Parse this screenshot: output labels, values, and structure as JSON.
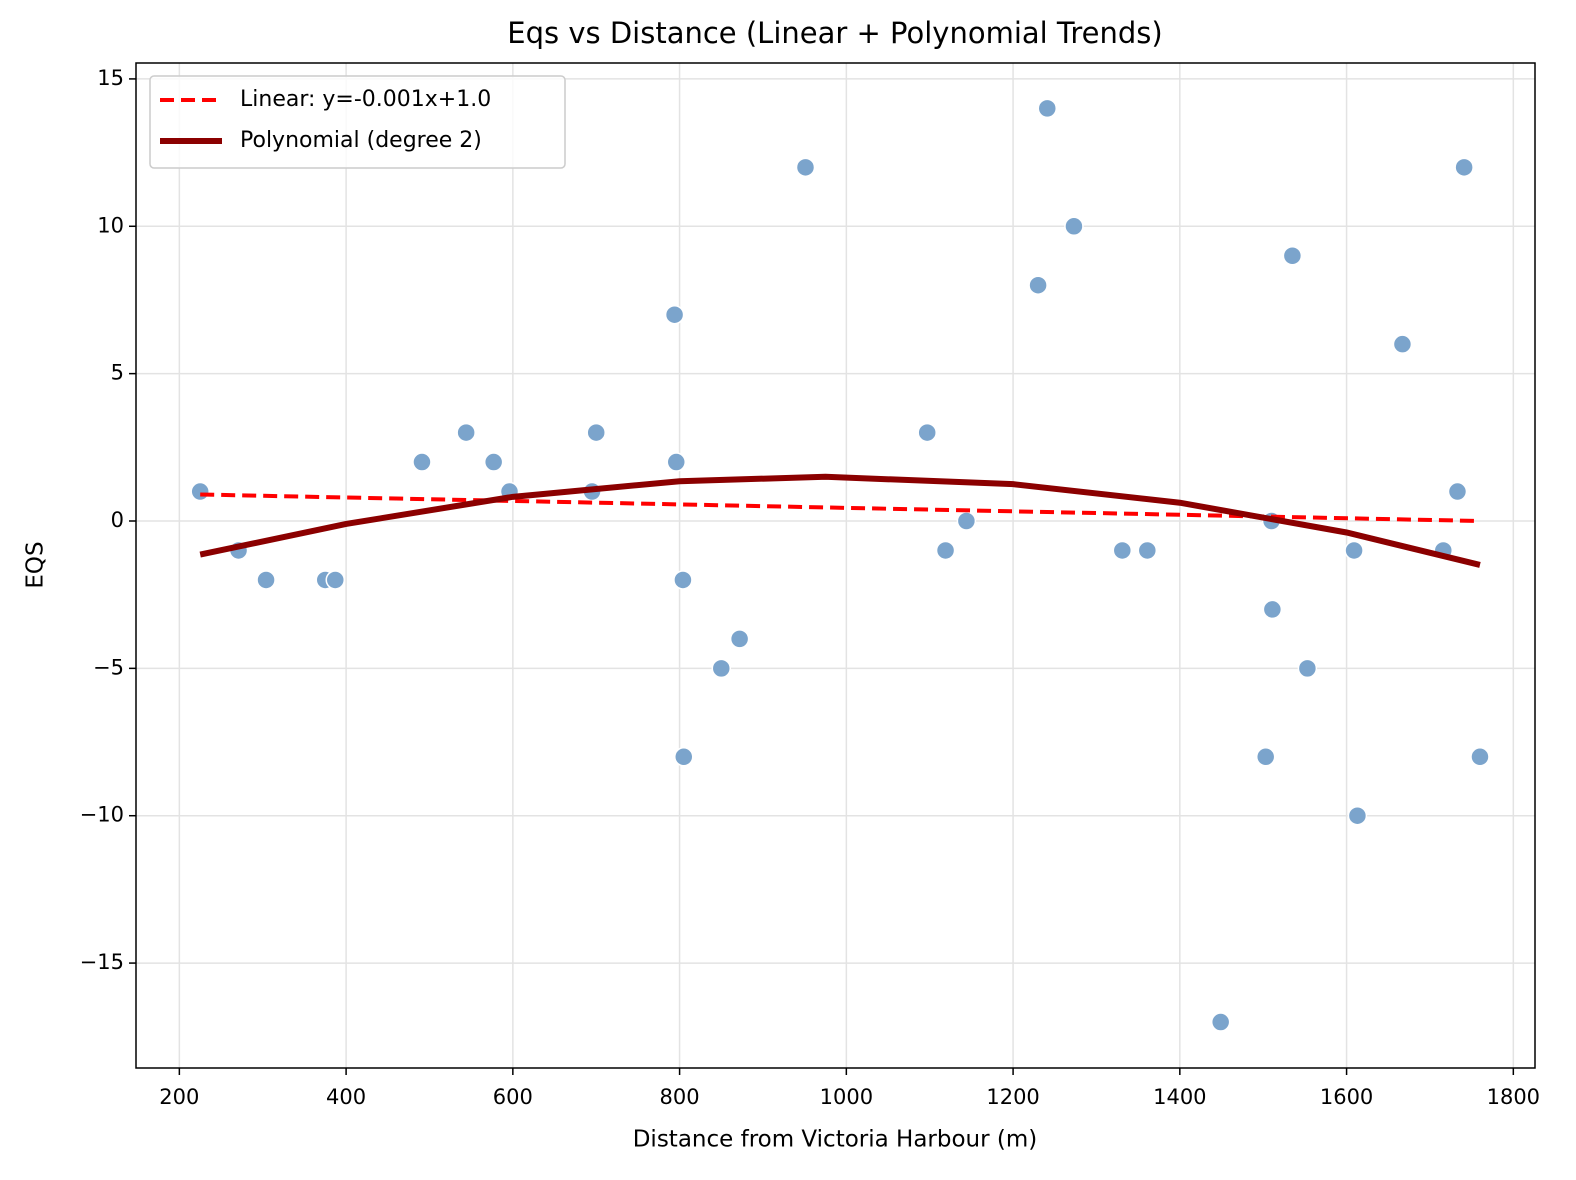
{
  "chart_data": {
    "type": "scatter",
    "title": "Eqs vs Distance (Linear + Polynomial Trends)",
    "x_label": "Distance from Victoria Harbour (m)",
    "y_label": "EQS",
    "points": {
      "color": "#7ba4cc",
      "x": [
        225,
        271,
        304,
        375,
        387,
        491,
        544,
        577,
        596,
        695,
        700,
        794,
        796,
        804,
        805,
        850,
        872,
        951,
        1097,
        1119,
        1144,
        1230,
        1241,
        1273,
        1331,
        1361,
        1449,
        1503,
        1510,
        1511,
        1535,
        1553,
        1609,
        1613,
        1667,
        1716,
        1733,
        1741,
        1760
      ],
      "y": [
        1,
        -1,
        -2,
        -2,
        -2,
        2,
        3,
        2,
        1,
        1,
        3,
        7,
        2,
        -2,
        -8,
        -5,
        -4,
        12,
        3,
        -1,
        0,
        8,
        14,
        10,
        -1,
        -1,
        -17,
        -8,
        0,
        -3,
        9,
        -5,
        -1,
        -10,
        6,
        -1,
        1,
        12,
        -8
      ]
    },
    "series": [
      {
        "name": "Linear: y=-0.001x+1.0",
        "color": "#ff0000",
        "style": "dashed",
        "x": [
          225,
          1760
        ],
        "y": [
          0.9,
          0.0
        ]
      },
      {
        "name": "Polynomial (degree 2)",
        "color": "#8b0000",
        "style": "solid",
        "x": [
          225,
          400,
          600,
          800,
          975,
          1200,
          1400,
          1600,
          1760
        ],
        "y": [
          -1.14,
          -0.1,
          0.82,
          1.35,
          1.5,
          1.25,
          0.62,
          -0.39,
          -1.49
        ]
      }
    ],
    "xlim": [
      148,
      1826
    ],
    "ylim": [
      -18.56,
      15.54
    ],
    "xticks": [
      200,
      400,
      600,
      800,
      1000,
      1200,
      1400,
      1600,
      1800
    ],
    "yticks": [
      {
        "value": -15,
        "label": "−15"
      },
      {
        "value": -10,
        "label": "−10"
      },
      {
        "value": -5,
        "label": "−5"
      },
      0,
      5,
      10,
      15
    ],
    "grid": true,
    "legend": "upper left"
  }
}
